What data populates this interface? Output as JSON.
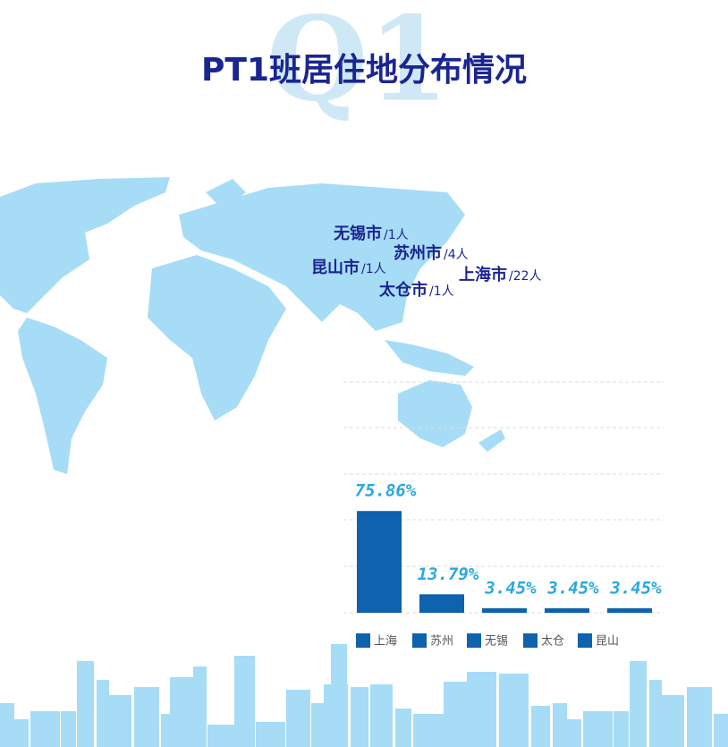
{
  "chart_data": {
    "type": "bar",
    "title": "PT1班居住地分布情况",
    "watermark": "Q1",
    "map_labels": [
      {
        "city": "无锡市",
        "count": "/1人"
      },
      {
        "city": "苏州市",
        "count": "/4人"
      },
      {
        "city": "昆山市",
        "count": "/1人"
      },
      {
        "city": "上海市",
        "count": "/22人"
      },
      {
        "city": "太仓市",
        "count": "/1人"
      }
    ],
    "categories": [
      "上海",
      "苏州",
      "无锡",
      "太仓",
      "昆山"
    ],
    "values": [
      75.86,
      13.79,
      3.45,
      3.45,
      3.45
    ],
    "value_labels": [
      "75.86%",
      "13.79%",
      "3.45%",
      "3.45%",
      "3.45%"
    ],
    "color": "#0f62ad",
    "ylim": [
      0,
      172
    ]
  }
}
